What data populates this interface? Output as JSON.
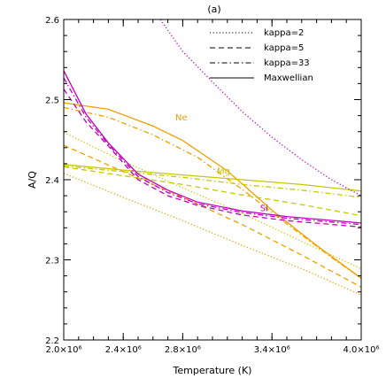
{
  "chart_data": {
    "type": "line",
    "title": "(a)",
    "xlabel": "Temperature (K)",
    "ylabel": "A/Q",
    "xlim": [
      2000000,
      4000000
    ],
    "ylim": [
      2.2,
      2.6
    ],
    "x_ticks": [
      {
        "value": 2000000,
        "label": "2.0×10⁶"
      },
      {
        "value": 2400000,
        "label": "2.4×10⁶"
      },
      {
        "value": 2800000,
        "label": "2.8×10⁶"
      },
      {
        "value": 3400000,
        "label": "3.4×10⁶"
      },
      {
        "value": 4000000,
        "label": "4.0×10⁶"
      }
    ],
    "y_ticks": [
      {
        "value": 2.2,
        "label": "2.2"
      },
      {
        "value": 2.3,
        "label": "2.3"
      },
      {
        "value": 2.4,
        "label": "2.4"
      },
      {
        "value": 2.5,
        "label": "2.5"
      },
      {
        "value": 2.6,
        "label": "2.6"
      }
    ],
    "legend": {
      "position": "top-right",
      "entries": [
        {
          "label": "kappa=2",
          "dash": "dotted"
        },
        {
          "label": "kappa=5",
          "dash": "dashed"
        },
        {
          "label": "kappa=33",
          "dash": "dashdot"
        },
        {
          "label": "Maxwellian",
          "dash": "solid"
        }
      ]
    },
    "annotations": [
      {
        "text": "Ne",
        "x": 2750000,
        "y": 2.474,
        "color": "#f0a000"
      },
      {
        "text": "Mg",
        "x": 3030000,
        "y": 2.407,
        "color": "#c8c800"
      },
      {
        "text": "Si",
        "x": 3320000,
        "y": 2.361,
        "color": "#c000c0"
      }
    ],
    "series": [
      {
        "element": "Ne",
        "kind": "Maxwellian",
        "color": "#f0a000",
        "dash": "solid",
        "x": [
          2000000,
          2300000,
          2600000,
          2800000,
          3100000,
          3400000,
          3700000,
          4000000
        ],
        "y": [
          2.496,
          2.488,
          2.467,
          2.449,
          2.411,
          2.362,
          2.318,
          2.277
        ]
      },
      {
        "element": "Ne",
        "kind": "kappa=33",
        "color": "#f0a000",
        "dash": "dashdot",
        "x": [
          2000000,
          2300000,
          2600000,
          2900000,
          3200000,
          3500000,
          3800000,
          4000000
        ],
        "y": [
          2.49,
          2.478,
          2.456,
          2.428,
          2.388,
          2.345,
          2.303,
          2.277
        ]
      },
      {
        "element": "Ne",
        "kind": "kappa=5",
        "color": "#f0a000",
        "dash": "dashed",
        "x": [
          2000000,
          2400000,
          2800000,
          3200000,
          3600000,
          4000000
        ],
        "y": [
          2.443,
          2.41,
          2.378,
          2.344,
          2.306,
          2.266
        ]
      },
      {
        "element": "Ne",
        "kind": "kappa=2",
        "color": "#f0a000",
        "dash": "dotted",
        "x": [
          2000000,
          2400000,
          2800000,
          3200000,
          3600000,
          4000000
        ],
        "y": [
          2.408,
          2.378,
          2.349,
          2.318,
          2.289,
          2.256
        ]
      },
      {
        "element": "Mg",
        "kind": "Maxwellian",
        "color": "#c8c800",
        "dash": "solid",
        "x": [
          2000000,
          2400000,
          2800000,
          3200000,
          3600000,
          4000000
        ],
        "y": [
          2.419,
          2.412,
          2.406,
          2.4,
          2.394,
          2.386
        ]
      },
      {
        "element": "Mg",
        "kind": "kappa=33",
        "color": "#c8c800",
        "dash": "dashdot",
        "x": [
          2000000,
          2400000,
          2800000,
          3200000,
          3600000,
          4000000
        ],
        "y": [
          2.417,
          2.41,
          2.403,
          2.394,
          2.387,
          2.378
        ]
      },
      {
        "element": "Mg",
        "kind": "kappa=5",
        "color": "#c8c800",
        "dash": "dashed",
        "x": [
          2000000,
          2400000,
          2800000,
          3200000,
          3600000,
          4000000
        ],
        "y": [
          2.416,
          2.405,
          2.394,
          2.381,
          2.369,
          2.355
        ]
      },
      {
        "element": "Mg",
        "kind": "kappa=2",
        "color": "#c8c800",
        "dash": "dotted",
        "x": [
          2000000,
          2400000,
          2800000,
          3200000,
          3600000,
          4000000
        ],
        "y": [
          2.459,
          2.423,
          2.39,
          2.358,
          2.323,
          2.289
        ]
      },
      {
        "element": "Si",
        "kind": "Maxwellian",
        "color": "#c000c0",
        "dash": "solid",
        "x": [
          2000000,
          2150000,
          2300000,
          2500000,
          2700000,
          2900000,
          3200000,
          3500000,
          4000000
        ],
        "y": [
          2.536,
          2.482,
          2.446,
          2.407,
          2.387,
          2.372,
          2.361,
          2.354,
          2.346
        ]
      },
      {
        "element": "Si",
        "kind": "kappa=33",
        "color": "#c000c0",
        "dash": "dashdot",
        "x": [
          2000000,
          2150000,
          2300000,
          2500000,
          2700000,
          2900000,
          3200000,
          3500000,
          4000000
        ],
        "y": [
          2.527,
          2.478,
          2.444,
          2.404,
          2.384,
          2.37,
          2.359,
          2.352,
          2.344
        ]
      },
      {
        "element": "Si",
        "kind": "kappa=5",
        "color": "#c000c0",
        "dash": "dashed",
        "x": [
          2000000,
          2150000,
          2300000,
          2500000,
          2700000,
          2900000,
          3200000,
          3500000,
          4000000
        ],
        "y": [
          2.513,
          2.472,
          2.442,
          2.4,
          2.38,
          2.368,
          2.356,
          2.349,
          2.341
        ]
      },
      {
        "element": "Si",
        "kind": "kappa=2",
        "color": "#c000c0",
        "dash": "dotted",
        "x": [
          2650000,
          2800000,
          3000000,
          3200000,
          3400000,
          3600000,
          3800000,
          4000000
        ],
        "y": [
          2.6,
          2.56,
          2.522,
          2.485,
          2.453,
          2.425,
          2.4,
          2.38
        ]
      }
    ]
  }
}
